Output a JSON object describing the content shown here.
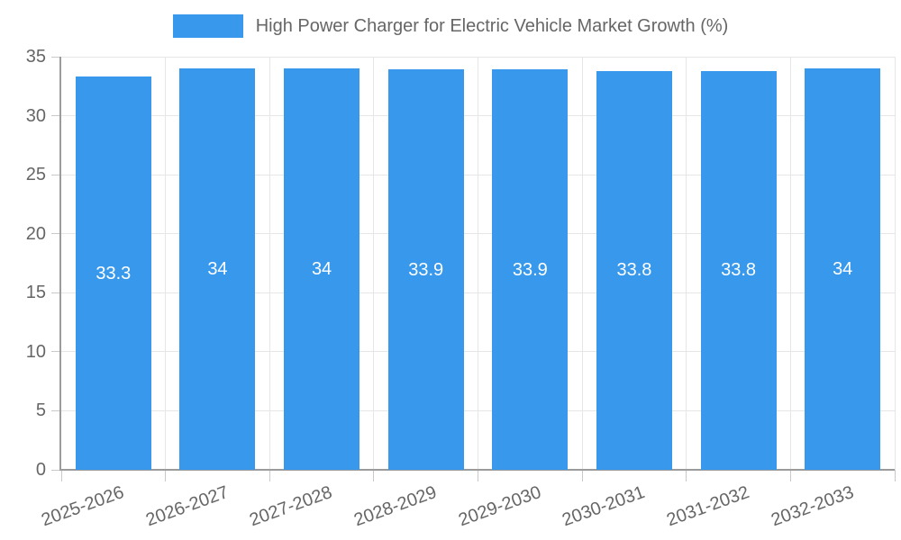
{
  "chart_data": {
    "type": "bar",
    "title": "High Power Charger for Electric Vehicle Market Growth (%)",
    "legend_position": "top",
    "categories": [
      "2025-2026",
      "2026-2027",
      "2027-2028",
      "2028-2029",
      "2029-2030",
      "2030-2031",
      "2031-2032",
      "2032-2033"
    ],
    "values": [
      33.3,
      34,
      34,
      33.9,
      33.9,
      33.8,
      33.8,
      34
    ],
    "value_labels": [
      "33.3",
      "34",
      "34",
      "33.9",
      "33.9",
      "33.8",
      "33.8",
      "34"
    ],
    "xlabel": "",
    "ylabel": "",
    "ylim": [
      0,
      35
    ],
    "yticks": [
      "0",
      "5",
      "10",
      "15",
      "20",
      "25",
      "30",
      "35"
    ],
    "grid": true,
    "colors": {
      "bar": "#3798EC",
      "grid": "#E6E6E6",
      "axis": "#9B9B9B",
      "tick_mark": "#C9C9C9",
      "tick_text": "#666666",
      "value_label": "#FFFFFF",
      "background": "#FFFFFF"
    }
  }
}
